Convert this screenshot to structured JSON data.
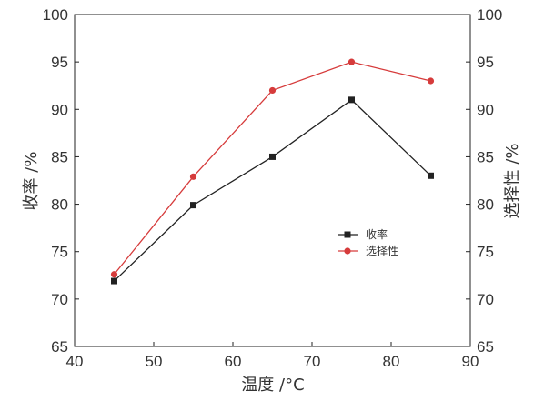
{
  "chart_data": {
    "type": "line",
    "x": [
      45,
      55,
      65,
      75,
      85
    ],
    "xlabel": "温度 /°C",
    "ylabel_left": "收率 /%",
    "ylabel_right": "选择性 /%",
    "xlim": [
      40,
      90
    ],
    "ylim": [
      65,
      100
    ],
    "xticks": [
      "40",
      "50",
      "60",
      "70",
      "80",
      "90"
    ],
    "yticks": [
      "65",
      "70",
      "75",
      "80",
      "85",
      "90",
      "95",
      "100"
    ],
    "grid": false,
    "legend_position": "center-right",
    "series": [
      {
        "name": "收率",
        "axis": "left",
        "color": "#222222",
        "marker": "square",
        "values": [
          71.9,
          79.9,
          85.0,
          91.0,
          83.0
        ]
      },
      {
        "name": "选择性",
        "axis": "right",
        "color": "#d63b3b",
        "marker": "circle",
        "values": [
          72.6,
          82.9,
          92.0,
          95.0,
          93.0
        ]
      }
    ]
  }
}
